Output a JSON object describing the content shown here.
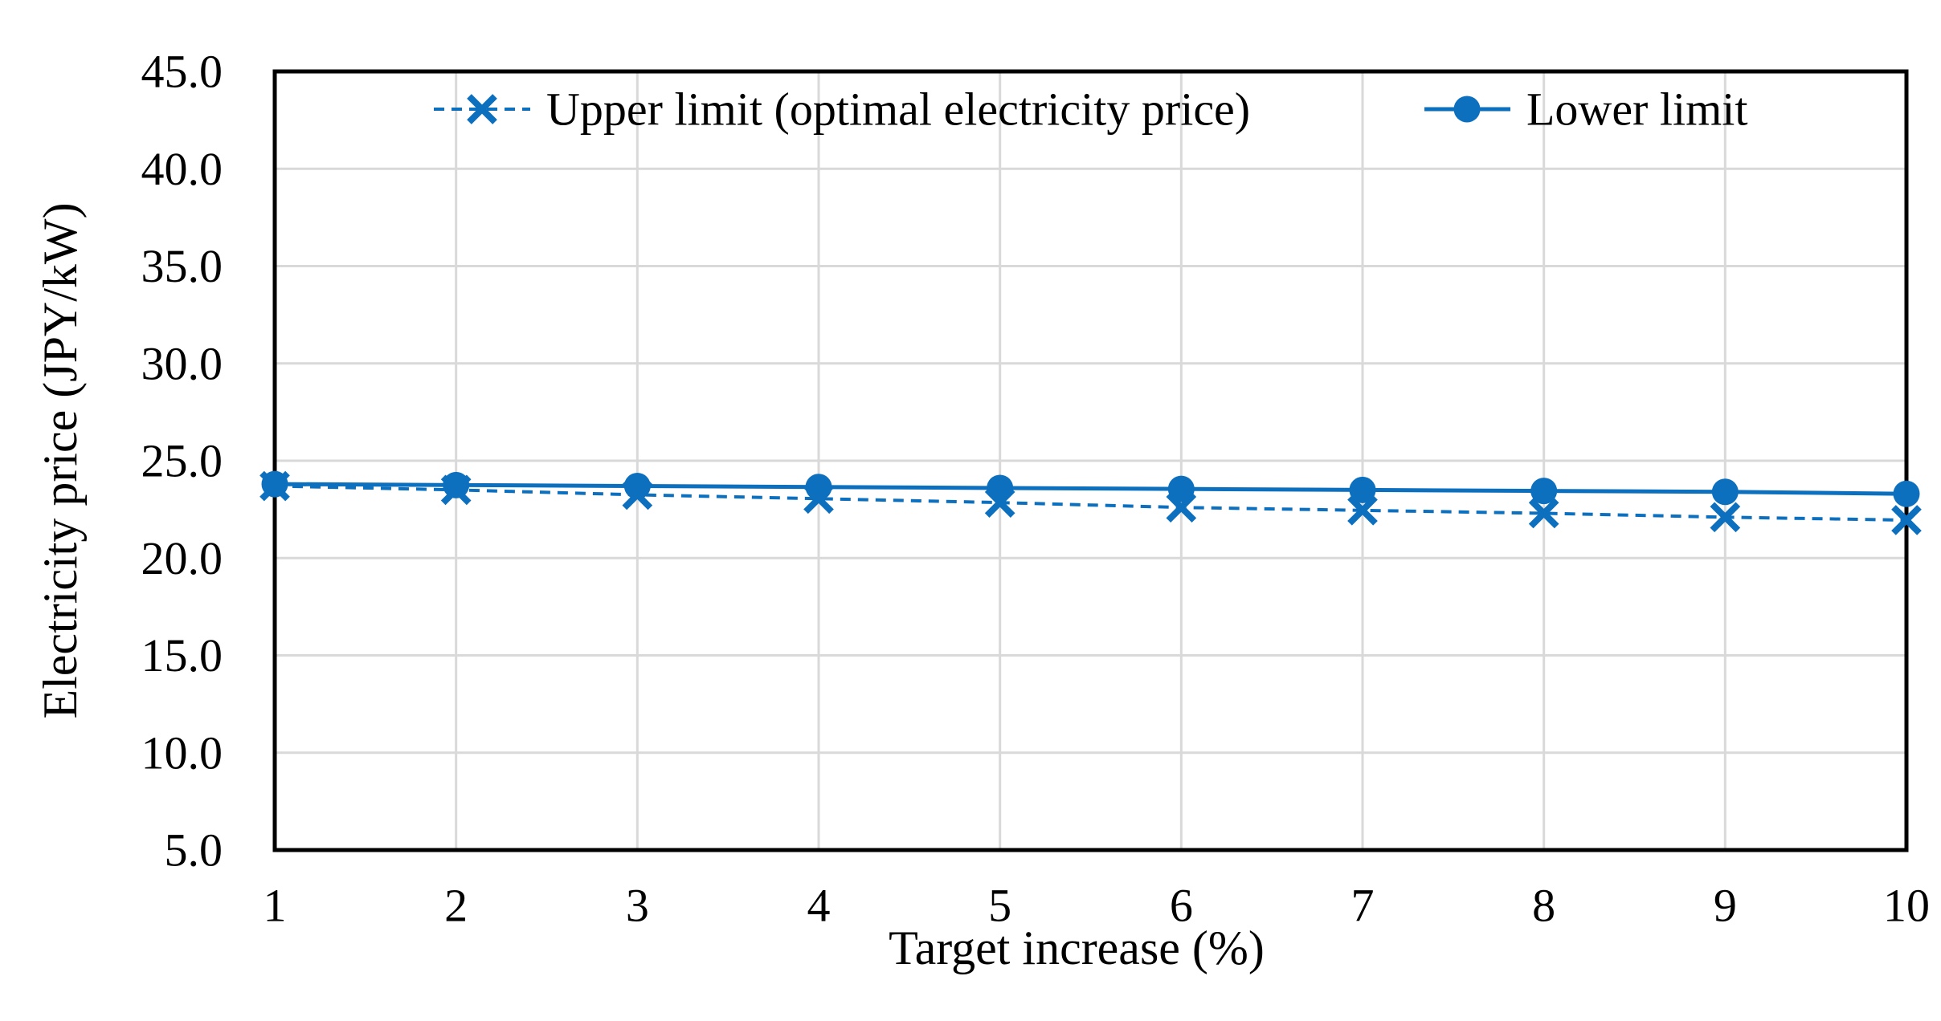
{
  "chart_data": {
    "type": "line",
    "title": "",
    "xlabel": "Target increase (%)",
    "ylabel": "Electricity price (JPY/kW)",
    "x": [
      1,
      2,
      3,
      4,
      5,
      6,
      7,
      8,
      9,
      10
    ],
    "xlim": [
      1,
      10
    ],
    "ylim": [
      5,
      45
    ],
    "ytick_step": 5,
    "xtick_labels": [
      "1",
      "2",
      "3",
      "4",
      "5",
      "6",
      "7",
      "8",
      "9",
      "10"
    ],
    "ytick_labels": [
      "5.0",
      "10.0",
      "15.0",
      "20.0",
      "25.0",
      "30.0",
      "35.0",
      "40.0",
      "45.0"
    ],
    "grid": true,
    "legend_position": "top-inside",
    "series": [
      {
        "name": "Upper limit (optimal electricity price)",
        "values": [
          23.7,
          23.5,
          23.25,
          23.05,
          22.85,
          22.6,
          22.45,
          22.3,
          22.1,
          21.95
        ],
        "line_style": "dashed",
        "marker": "x",
        "color": "#0D70BE"
      },
      {
        "name": "Lower limit",
        "values": [
          23.8,
          23.75,
          23.7,
          23.65,
          23.6,
          23.55,
          23.5,
          23.45,
          23.4,
          23.3
        ],
        "line_style": "solid",
        "marker": "circle",
        "color": "#0D70BE"
      }
    ]
  },
  "colors": {
    "series_blue": "#0D70BE",
    "gridline": "#D9D9D9",
    "axis_border": "#000000",
    "text": "#000000",
    "background": "#FFFFFF"
  }
}
